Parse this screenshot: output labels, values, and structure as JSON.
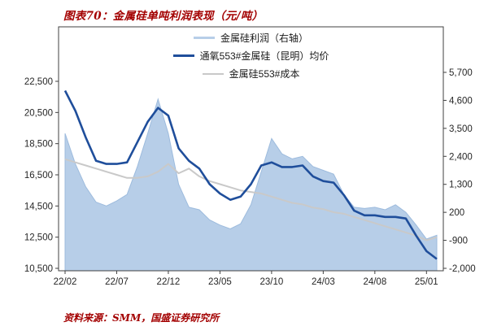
{
  "title": "图表70：金属硅单吨利润表现（元/吨）",
  "source": "资料来源：SMM，国盛证券研究所",
  "colors": {
    "title_red": "#A30000",
    "source_red": "#A30000",
    "profit_area": "#B7CEE8",
    "profit_area_edge": "#9DBBDD",
    "price_line": "#1F4E9B",
    "cost_line": "#C9C9C9",
    "axis_line": "#404040",
    "axis_text": "#262626"
  },
  "legend": [
    {
      "label": "金属硅利润（右轴）",
      "series": "profit",
      "color": "#B7CEE8",
      "thickness": 3
    },
    {
      "label": "通氧553#金属硅（昆明）均价",
      "series": "price",
      "color": "#1F4E9B",
      "thickness": 3
    },
    {
      "label": "金属硅553#成本",
      "series": "cost",
      "color": "#C9C9C9",
      "thickness": 2
    }
  ],
  "chart_data": {
    "type": "area",
    "subtype": "combo-area-line",
    "title": "金属硅单吨利润表现（元/吨）",
    "grid": false,
    "legend_position": "top-center-inside",
    "x": [
      "22/02",
      "22/03",
      "22/04",
      "22/05",
      "22/06",
      "22/07",
      "22/08",
      "22/09",
      "22/10",
      "22/11",
      "22/12",
      "23/01",
      "23/02",
      "23/03",
      "23/04",
      "23/05",
      "23/06",
      "23/07",
      "23/08",
      "23/09",
      "23/10",
      "23/11",
      "23/12",
      "24/01",
      "24/02",
      "24/03",
      "24/04",
      "24/05",
      "24/06",
      "24/07",
      "24/08",
      "24/09",
      "24/10",
      "24/11",
      "24/12",
      "25/01",
      "25/02"
    ],
    "x_tick_labels": [
      "22/02",
      "22/07",
      "22/12",
      "23/05",
      "23/10",
      "24/03",
      "24/08",
      "25/01"
    ],
    "x_tick_indices": [
      0,
      5,
      10,
      15,
      20,
      25,
      30,
      35
    ],
    "left_axis": {
      "min": 10500,
      "max": 22500,
      "ticks": [
        22500,
        20500,
        18500,
        16500,
        14500,
        12500,
        10500
      ],
      "unit": "元/吨"
    },
    "right_axis": {
      "min": -2000,
      "max": 5700,
      "ticks": [
        5700,
        4600,
        3500,
        2400,
        1300,
        200,
        -900,
        -2000
      ],
      "unit": "元/吨"
    },
    "series": [
      {
        "name": "金属硅利润（右轴）",
        "type": "area",
        "axis": "right",
        "color": "#B7CEE8",
        "values": [
          3300,
          2100,
          1200,
          600,
          450,
          650,
          900,
          2000,
          3300,
          4650,
          3300,
          1300,
          400,
          300,
          -100,
          -300,
          -450,
          -250,
          500,
          1800,
          3100,
          2500,
          2300,
          2400,
          2000,
          1850,
          1700,
          900,
          400,
          350,
          400,
          300,
          500,
          200,
          -300,
          -850,
          -700
        ]
      },
      {
        "name": "通氧553#金属硅（昆明）均价",
        "type": "line",
        "axis": "left",
        "color": "#1F4E9B",
        "values": [
          21900,
          20600,
          18900,
          17400,
          17200,
          17200,
          17300,
          18600,
          19900,
          20800,
          20300,
          18200,
          17400,
          16900,
          15900,
          15300,
          14900,
          15100,
          15900,
          17100,
          17300,
          17000,
          17000,
          17100,
          16400,
          16100,
          16000,
          15200,
          14200,
          13900,
          13900,
          13800,
          13800,
          13700,
          12600,
          11600,
          11100
        ]
      },
      {
        "name": "金属硅553#成本",
        "type": "line",
        "axis": "left",
        "color": "#C9C9C9",
        "values": [
          17500,
          17300,
          17100,
          16900,
          16700,
          16500,
          16300,
          16300,
          16400,
          16700,
          17200,
          16600,
          16900,
          16400,
          16100,
          15900,
          15700,
          15500,
          15400,
          15300,
          15100,
          14900,
          14700,
          14600,
          14400,
          14300,
          14100,
          14000,
          13800,
          13600,
          13400,
          13200,
          13000,
          12800,
          12600,
          12300,
          12500
        ]
      }
    ]
  }
}
